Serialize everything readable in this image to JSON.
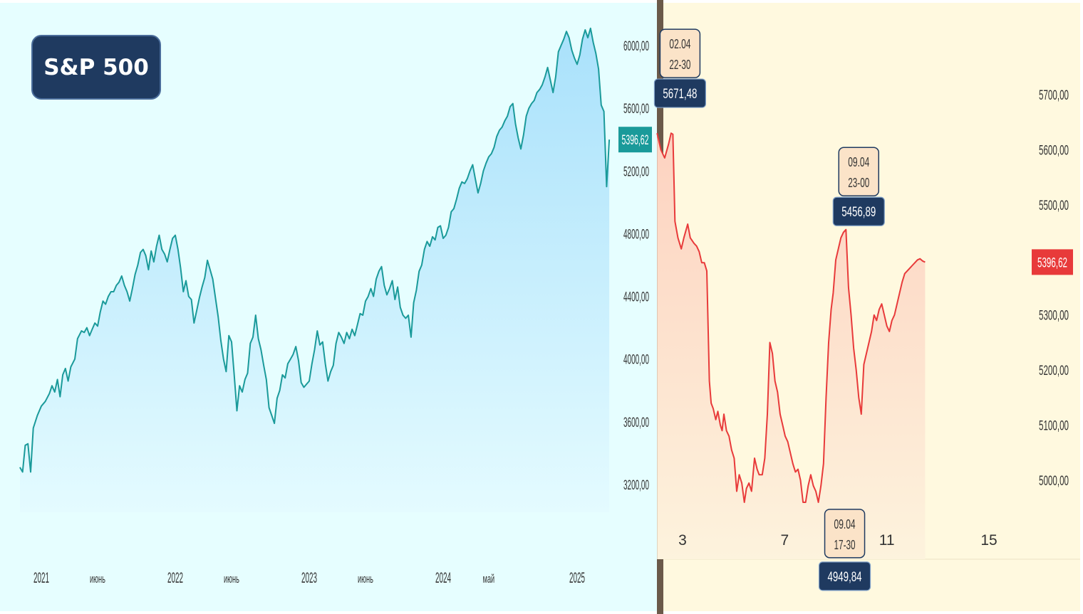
{
  "badge_title": "S&P 500",
  "chart_data": [
    {
      "type": "area",
      "title": "S&P 500",
      "color": "#1a9a9a",
      "fill_top": "#a9e1fb",
      "fill_bottom": "#e4fbff",
      "ylim": [
        2900,
        6200
      ],
      "yticks": [
        "6000,00",
        "5600,00",
        "5200,00",
        "4800,00",
        "4400,00",
        "4000,00",
        "3600,00",
        "3200,00"
      ],
      "ytick_values": [
        6000,
        5600,
        5200,
        4800,
        4400,
        4000,
        3600,
        3200
      ],
      "xlabels": [
        {
          "label": "2021",
          "t": 2021.0
        },
        {
          "label": "июнь",
          "t": 2021.42
        },
        {
          "label": "2022",
          "t": 2022.0
        },
        {
          "label": "июнь",
          "t": 2022.42
        },
        {
          "label": "2023",
          "t": 2023.0
        },
        {
          "label": "июнь",
          "t": 2023.42
        },
        {
          "label": "2024",
          "t": 2024.0
        },
        {
          "label": "май",
          "t": 2024.34
        },
        {
          "label": "2025",
          "t": 2025.0
        }
      ],
      "last_value_label": "5396,62",
      "series": [
        [
          2020.84,
          3310
        ],
        [
          2020.86,
          3280
        ],
        [
          2020.88,
          3450
        ],
        [
          2020.9,
          3460
        ],
        [
          2020.92,
          3280
        ],
        [
          2020.94,
          3560
        ],
        [
          2020.97,
          3640
        ],
        [
          2021.0,
          3700
        ],
        [
          2021.03,
          3730
        ],
        [
          2021.06,
          3780
        ],
        [
          2021.08,
          3830
        ],
        [
          2021.1,
          3790
        ],
        [
          2021.12,
          3870
        ],
        [
          2021.14,
          3760
        ],
        [
          2021.16,
          3900
        ],
        [
          2021.18,
          3940
        ],
        [
          2021.2,
          3860
        ],
        [
          2021.22,
          3950
        ],
        [
          2021.25,
          4000
        ],
        [
          2021.27,
          4130
        ],
        [
          2021.3,
          4180
        ],
        [
          2021.32,
          4170
        ],
        [
          2021.34,
          4200
        ],
        [
          2021.36,
          4150
        ],
        [
          2021.38,
          4190
        ],
        [
          2021.4,
          4230
        ],
        [
          2021.42,
          4210
        ],
        [
          2021.44,
          4300
        ],
        [
          2021.46,
          4370
        ],
        [
          2021.48,
          4350
        ],
        [
          2021.5,
          4400
        ],
        [
          2021.52,
          4430
        ],
        [
          2021.54,
          4430
        ],
        [
          2021.56,
          4470
        ],
        [
          2021.58,
          4490
        ],
        [
          2021.6,
          4530
        ],
        [
          2021.62,
          4470
        ],
        [
          2021.64,
          4430
        ],
        [
          2021.66,
          4370
        ],
        [
          2021.68,
          4450
        ],
        [
          2021.7,
          4540
        ],
        [
          2021.72,
          4600
        ],
        [
          2021.74,
          4680
        ],
        [
          2021.76,
          4700
        ],
        [
          2021.78,
          4660
        ],
        [
          2021.8,
          4570
        ],
        [
          2021.82,
          4690
        ],
        [
          2021.84,
          4620
        ],
        [
          2021.86,
          4720
        ],
        [
          2021.88,
          4790
        ],
        [
          2021.9,
          4700
        ],
        [
          2021.92,
          4670
        ],
        [
          2021.94,
          4620
        ],
        [
          2021.96,
          4700
        ],
        [
          2021.98,
          4770
        ],
        [
          2022.0,
          4790
        ],
        [
          2022.02,
          4700
        ],
        [
          2022.04,
          4580
        ],
        [
          2022.06,
          4430
        ],
        [
          2022.08,
          4500
        ],
        [
          2022.1,
          4400
        ],
        [
          2022.12,
          4380
        ],
        [
          2022.14,
          4230
        ],
        [
          2022.16,
          4310
        ],
        [
          2022.18,
          4390
        ],
        [
          2022.2,
          4460
        ],
        [
          2022.22,
          4520
        ],
        [
          2022.24,
          4630
        ],
        [
          2022.26,
          4570
        ],
        [
          2022.28,
          4510
        ],
        [
          2022.3,
          4390
        ],
        [
          2022.32,
          4270
        ],
        [
          2022.34,
          4120
        ],
        [
          2022.36,
          4000
        ],
        [
          2022.38,
          3920
        ],
        [
          2022.4,
          4150
        ],
        [
          2022.42,
          4110
        ],
        [
          2022.44,
          3900
        ],
        [
          2022.46,
          3670
        ],
        [
          2022.48,
          3830
        ],
        [
          2022.5,
          3790
        ],
        [
          2022.52,
          3870
        ],
        [
          2022.54,
          3910
        ],
        [
          2022.56,
          4100
        ],
        [
          2022.58,
          4140
        ],
        [
          2022.6,
          4280
        ],
        [
          2022.62,
          4130
        ],
        [
          2022.64,
          4060
        ],
        [
          2022.66,
          3960
        ],
        [
          2022.68,
          3870
        ],
        [
          2022.7,
          3690
        ],
        [
          2022.72,
          3640
        ],
        [
          2022.74,
          3590
        ],
        [
          2022.76,
          3750
        ],
        [
          2022.78,
          3800
        ],
        [
          2022.8,
          3900
        ],
        [
          2022.82,
          3880
        ],
        [
          2022.84,
          3970
        ],
        [
          2022.86,
          4000
        ],
        [
          2022.88,
          4030
        ],
        [
          2022.9,
          4080
        ],
        [
          2022.92,
          3990
        ],
        [
          2022.94,
          3850
        ],
        [
          2022.96,
          3820
        ],
        [
          2022.98,
          3840
        ],
        [
          2023.0,
          3860
        ],
        [
          2023.02,
          3970
        ],
        [
          2023.04,
          4060
        ],
        [
          2023.06,
          4180
        ],
        [
          2023.08,
          4090
        ],
        [
          2023.1,
          4110
        ],
        [
          2023.12,
          3970
        ],
        [
          2023.14,
          3860
        ],
        [
          2023.16,
          3920
        ],
        [
          2023.18,
          3960
        ],
        [
          2023.2,
          4100
        ],
        [
          2023.22,
          4170
        ],
        [
          2023.24,
          4140
        ],
        [
          2023.26,
          4100
        ],
        [
          2023.28,
          4170
        ],
        [
          2023.3,
          4130
        ],
        [
          2023.32,
          4190
        ],
        [
          2023.34,
          4150
        ],
        [
          2023.36,
          4220
        ],
        [
          2023.38,
          4290
        ],
        [
          2023.4,
          4280
        ],
        [
          2023.42,
          4370
        ],
        [
          2023.44,
          4400
        ],
        [
          2023.46,
          4450
        ],
        [
          2023.48,
          4400
        ],
        [
          2023.5,
          4510
        ],
        [
          2023.52,
          4560
        ],
        [
          2023.54,
          4590
        ],
        [
          2023.56,
          4470
        ],
        [
          2023.58,
          4410
        ],
        [
          2023.6,
          4450
        ],
        [
          2023.62,
          4500
        ],
        [
          2023.64,
          4380
        ],
        [
          2023.66,
          4460
        ],
        [
          2023.68,
          4330
        ],
        [
          2023.7,
          4280
        ],
        [
          2023.72,
          4260
        ],
        [
          2023.74,
          4280
        ],
        [
          2023.76,
          4140
        ],
        [
          2023.78,
          4360
        ],
        [
          2023.8,
          4440
        ],
        [
          2023.82,
          4560
        ],
        [
          2023.84,
          4600
        ],
        [
          2023.86,
          4700
        ],
        [
          2023.88,
          4750
        ],
        [
          2023.9,
          4720
        ],
        [
          2023.92,
          4780
        ],
        [
          2023.94,
          4760
        ],
        [
          2023.96,
          4840
        ],
        [
          2023.98,
          4850
        ],
        [
          2024.0,
          4770
        ],
        [
          2024.02,
          4790
        ],
        [
          2024.04,
          4840
        ],
        [
          2024.06,
          4940
        ],
        [
          2024.08,
          4960
        ],
        [
          2024.1,
          5020
        ],
        [
          2024.12,
          5090
        ],
        [
          2024.14,
          5130
        ],
        [
          2024.16,
          5120
        ],
        [
          2024.18,
          5150
        ],
        [
          2024.2,
          5200
        ],
        [
          2024.22,
          5240
        ],
        [
          2024.24,
          5150
        ],
        [
          2024.26,
          5060
        ],
        [
          2024.28,
          5120
        ],
        [
          2024.3,
          5200
        ],
        [
          2024.32,
          5250
        ],
        [
          2024.34,
          5290
        ],
        [
          2024.36,
          5310
        ],
        [
          2024.38,
          5350
        ],
        [
          2024.4,
          5420
        ],
        [
          2024.42,
          5460
        ],
        [
          2024.44,
          5480
        ],
        [
          2024.46,
          5520
        ],
        [
          2024.48,
          5550
        ],
        [
          2024.5,
          5610
        ],
        [
          2024.52,
          5630
        ],
        [
          2024.54,
          5500
        ],
        [
          2024.56,
          5410
        ],
        [
          2024.58,
          5340
        ],
        [
          2024.6,
          5430
        ],
        [
          2024.62,
          5550
        ],
        [
          2024.64,
          5600
        ],
        [
          2024.66,
          5630
        ],
        [
          2024.68,
          5650
        ],
        [
          2024.7,
          5700
        ],
        [
          2024.72,
          5720
        ],
        [
          2024.74,
          5750
        ],
        [
          2024.76,
          5800
        ],
        [
          2024.78,
          5860
        ],
        [
          2024.8,
          5780
        ],
        [
          2024.82,
          5700
        ],
        [
          2024.84,
          5800
        ],
        [
          2024.86,
          5960
        ],
        [
          2024.88,
          6000
        ],
        [
          2024.9,
          6040
        ],
        [
          2024.92,
          6090
        ],
        [
          2024.94,
          6050
        ],
        [
          2024.96,
          5970
        ],
        [
          2024.98,
          5920
        ],
        [
          2025.0,
          5880
        ],
        [
          2025.02,
          5940
        ],
        [
          2025.04,
          6040
        ],
        [
          2025.06,
          6100
        ],
        [
          2025.08,
          6050
        ],
        [
          2025.1,
          6110
        ],
        [
          2025.12,
          6020
        ],
        [
          2025.14,
          5950
        ],
        [
          2025.16,
          5850
        ],
        [
          2025.18,
          5620
        ],
        [
          2025.2,
          5580
        ],
        [
          2025.22,
          5100
        ],
        [
          2025.24,
          5400
        ]
      ]
    },
    {
      "type": "line",
      "color": "#e83a3a",
      "fill_top": "#fdd2c0",
      "fill_bottom": "#fdf3dd",
      "ylim": [
        4900,
        5800
      ],
      "yticks": [
        "5700,00",
        "5600,00",
        "5500,00",
        "5400,00",
        "5300,00",
        "5200,00",
        "5100,00",
        "5000,00"
      ],
      "ytick_values": [
        5700,
        5600,
        5500,
        5400,
        5300,
        5200,
        5100,
        5000
      ],
      "xticks": [
        "3",
        "7",
        "11",
        "15"
      ],
      "xtick_values": [
        3,
        7,
        11,
        15
      ],
      "last_value_label": "5396,62",
      "annotations": [
        {
          "date": "02.04",
          "time": "22-30",
          "value": "5671,48",
          "x": 2.9,
          "y": 5671.48,
          "position": "above"
        },
        {
          "date": "09.04",
          "time": "23-00",
          "value": "5456,89",
          "x": 9.9,
          "y": 5456.89,
          "position": "above"
        },
        {
          "date": "09.04",
          "time": "17-30",
          "value": "4949,84",
          "x": 9.35,
          "y": 4949.84,
          "position": "below"
        }
      ],
      "series": [
        [
          2.0,
          5630
        ],
        [
          2.15,
          5600
        ],
        [
          2.3,
          5585
        ],
        [
          2.45,
          5610
        ],
        [
          2.55,
          5630
        ],
        [
          2.62,
          5628
        ],
        [
          2.7,
          5470
        ],
        [
          2.82,
          5440
        ],
        [
          2.95,
          5420
        ],
        [
          3.05,
          5440
        ],
        [
          3.2,
          5465
        ],
        [
          3.3,
          5440
        ],
        [
          3.45,
          5430
        ],
        [
          3.55,
          5425
        ],
        [
          3.65,
          5415
        ],
        [
          3.75,
          5395
        ],
        [
          3.85,
          5395
        ],
        [
          3.95,
          5380
        ],
        [
          4.05,
          5180
        ],
        [
          4.12,
          5140
        ],
        [
          4.2,
          5130
        ],
        [
          4.3,
          5110
        ],
        [
          4.38,
          5125
        ],
        [
          4.48,
          5100
        ],
        [
          4.55,
          5090
        ],
        [
          4.62,
          5120
        ],
        [
          4.72,
          5090
        ],
        [
          4.82,
          5080
        ],
        [
          4.92,
          5055
        ],
        [
          5.02,
          5040
        ],
        [
          5.12,
          4980
        ],
        [
          5.22,
          5010
        ],
        [
          5.32,
          4995
        ],
        [
          5.42,
          4960
        ],
        [
          5.5,
          4985
        ],
        [
          5.6,
          4995
        ],
        [
          5.7,
          4980
        ],
        [
          5.82,
          5040
        ],
        [
          5.92,
          5020
        ],
        [
          6.0,
          5010
        ],
        [
          6.12,
          5010
        ],
        [
          6.22,
          5040
        ],
        [
          6.32,
          5120
        ],
        [
          6.42,
          5250
        ],
        [
          6.52,
          5230
        ],
        [
          6.62,
          5180
        ],
        [
          6.72,
          5160
        ],
        [
          6.82,
          5120
        ],
        [
          6.92,
          5100
        ],
        [
          7.02,
          5080
        ],
        [
          7.12,
          5070
        ],
        [
          7.22,
          5050
        ],
        [
          7.32,
          5030
        ],
        [
          7.42,
          5015
        ],
        [
          7.52,
          5020
        ],
        [
          7.62,
          5000
        ],
        [
          7.72,
          4960
        ],
        [
          7.82,
          4960
        ],
        [
          7.92,
          4990
        ],
        [
          8.02,
          5010
        ],
        [
          8.12,
          4990
        ],
        [
          8.22,
          4980
        ],
        [
          8.32,
          4960
        ],
        [
          8.42,
          4990
        ],
        [
          8.52,
          5030
        ],
        [
          8.62,
          5150
        ],
        [
          8.72,
          5250
        ],
        [
          8.82,
          5310
        ],
        [
          8.9,
          5340
        ],
        [
          9.0,
          5400
        ],
        [
          9.1,
          5420
        ],
        [
          9.2,
          5440
        ],
        [
          9.3,
          5450
        ],
        [
          9.4,
          5455
        ],
        [
          9.5,
          5350
        ],
        [
          9.6,
          5300
        ],
        [
          9.7,
          5240
        ],
        [
          9.8,
          5200
        ],
        [
          9.9,
          5150
        ],
        [
          10.0,
          5120
        ],
        [
          10.1,
          5210
        ],
        [
          10.2,
          5230
        ],
        [
          10.3,
          5250
        ],
        [
          10.4,
          5270
        ],
        [
          10.5,
          5300
        ],
        [
          10.6,
          5290
        ],
        [
          10.7,
          5310
        ],
        [
          10.8,
          5320
        ],
        [
          10.9,
          5300
        ],
        [
          11.0,
          5280
        ],
        [
          11.1,
          5270
        ],
        [
          11.2,
          5290
        ],
        [
          11.3,
          5300
        ],
        [
          11.4,
          5320
        ],
        [
          11.5,
          5340
        ],
        [
          11.6,
          5360
        ],
        [
          11.7,
          5375
        ],
        [
          11.8,
          5380
        ],
        [
          11.9,
          5385
        ],
        [
          12.0,
          5390
        ],
        [
          12.1,
          5395
        ],
        [
          12.2,
          5400
        ],
        [
          12.3,
          5402
        ],
        [
          12.4,
          5398
        ],
        [
          12.5,
          5396
        ]
      ]
    }
  ]
}
